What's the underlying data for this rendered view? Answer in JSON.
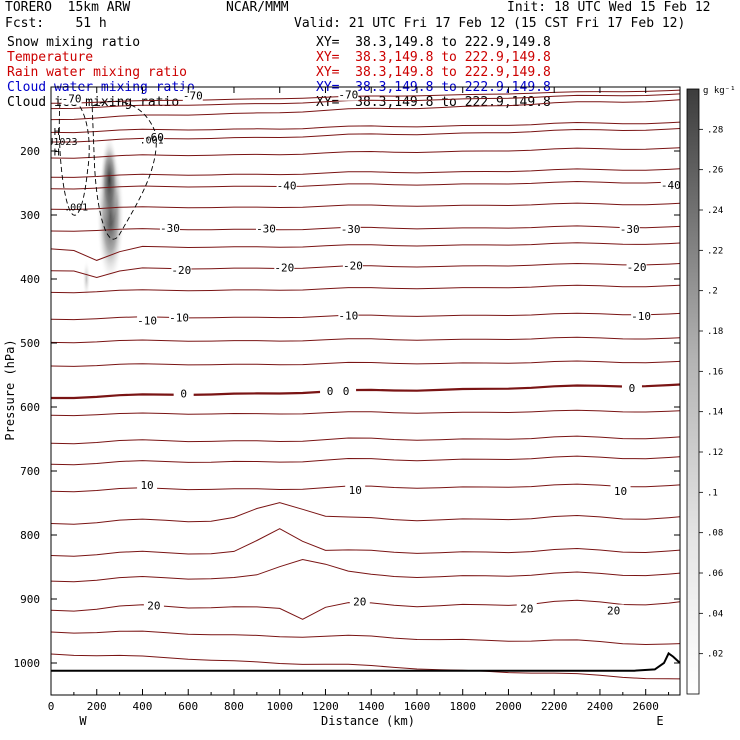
{
  "header": {
    "model": "TORERO  15km ARW",
    "org": "NCAR/MMM",
    "init": "Init: 18 UTC Wed 15 Feb 12",
    "fcst": "Fcst:    51 h",
    "valid": "Valid: 21 UTC Fri 17 Feb 12 (15 CST Fri 17 Feb 12)",
    "fields": [
      {
        "name": "Snow mixing ratio",
        "xy": "XY=  38.3,149.8 to 222.9,149.8",
        "color": "#000000"
      },
      {
        "name": "Temperature",
        "xy": "XY=  38.3,149.8 to 222.9,149.8",
        "color": "#cc0000"
      },
      {
        "name": "Rain water mixing ratio",
        "xy": "XY=  38.3,149.8 to 222.9,149.8",
        "color": "#cc0000"
      },
      {
        "name": "Cloud water mixing ratio",
        "xy": "XY=  38.3,149.8 to 222.9,149.8",
        "color": "#0000cc"
      },
      {
        "name": "Cloud ice mixing ratio",
        "xy": "XY=  38.3,149.8 to 222.9,149.8",
        "color": "#000000"
      }
    ]
  },
  "colors": {
    "temperature": "#7a1414",
    "zero_line": "#7a1414",
    "terrain": "#000000",
    "frame": "#000000"
  },
  "chart_data": {
    "type": "cross-section",
    "xlabel": "Distance (km)",
    "ylabel": "Pressure (hPa)",
    "xlim": [
      0,
      2750
    ],
    "ylim": [
      1050,
      100
    ],
    "xticks": [
      0,
      200,
      400,
      600,
      800,
      1000,
      1200,
      1400,
      1600,
      1800,
      2000,
      2200,
      2400,
      2600
    ],
    "yticks": [
      200,
      300,
      400,
      500,
      600,
      700,
      800,
      900,
      1000
    ],
    "x_end_labels": {
      "left": "W",
      "right": "E"
    },
    "colorbar": {
      "unit": "g kg⁻¹",
      "ticks": [
        ".02",
        ".04",
        ".06",
        ".08",
        ".1",
        ".12",
        ".14",
        ".16",
        ".18",
        ".2",
        ".22",
        ".24",
        ".26",
        ".28"
      ],
      "range": [
        0,
        0.3
      ]
    },
    "temperature_labels": [
      {
        "value": "-70",
        "x": 90,
        "p": 118
      },
      {
        "value": "-70",
        "x": 620,
        "p": 113
      },
      {
        "value": "-70",
        "x": 1300,
        "p": 112
      },
      {
        "value": "-60",
        "x": 450,
        "p": 178
      },
      {
        "value": "-40",
        "x": 1030,
        "p": 254
      },
      {
        "value": "-40",
        "x": 2710,
        "p": 253
      },
      {
        "value": "-30",
        "x": 520,
        "p": 320
      },
      {
        "value": "-30",
        "x": 940,
        "p": 321
      },
      {
        "value": "-30",
        "x": 1310,
        "p": 322
      },
      {
        "value": "-30",
        "x": 2530,
        "p": 322
      },
      {
        "value": "-20",
        "x": 570,
        "p": 386
      },
      {
        "value": "-20",
        "x": 1020,
        "p": 382
      },
      {
        "value": "-20",
        "x": 1320,
        "p": 379
      },
      {
        "value": "-20",
        "x": 2560,
        "p": 381
      },
      {
        "value": "-10",
        "x": 420,
        "p": 465
      },
      {
        "value": "-10",
        "x": 560,
        "p": 460
      },
      {
        "value": "-10",
        "x": 1300,
        "p": 457
      },
      {
        "value": "-10",
        "x": 2580,
        "p": 458
      },
      {
        "value": "0",
        "x": 580,
        "p": 579
      },
      {
        "value": "0",
        "x": 1220,
        "p": 575
      },
      {
        "value": "0",
        "x": 1290,
        "p": 575
      },
      {
        "value": "0",
        "x": 2540,
        "p": 570
      },
      {
        "value": "10",
        "x": 420,
        "p": 722
      },
      {
        "value": "10",
        "x": 1330,
        "p": 730
      },
      {
        "value": "10",
        "x": 2490,
        "p": 731
      },
      {
        "value": "20",
        "x": 450,
        "p": 910
      },
      {
        "value": "20",
        "x": 1350,
        "p": 904
      },
      {
        "value": "20",
        "x": 2080,
        "p": 915
      },
      {
        "value": "20",
        "x": 2460,
        "p": 918
      }
    ],
    "cloud_labels": [
      {
        "value": ".001",
        "x": 440,
        "p": 188
      },
      {
        "value": ".001",
        "x": 110,
        "p": 293
      },
      {
        "value": "H",
        "x": 25,
        "p": 175
      },
      {
        "value": "U1023",
        "x": 50,
        "p": 191
      },
      {
        "value": "H",
        "x": 25,
        "p": 207
      }
    ],
    "snow_maximum_value": 0.2,
    "temperature_levels": [
      -70,
      -60,
      -50,
      -40,
      -30,
      -20,
      -10,
      0,
      10,
      20
    ]
  }
}
